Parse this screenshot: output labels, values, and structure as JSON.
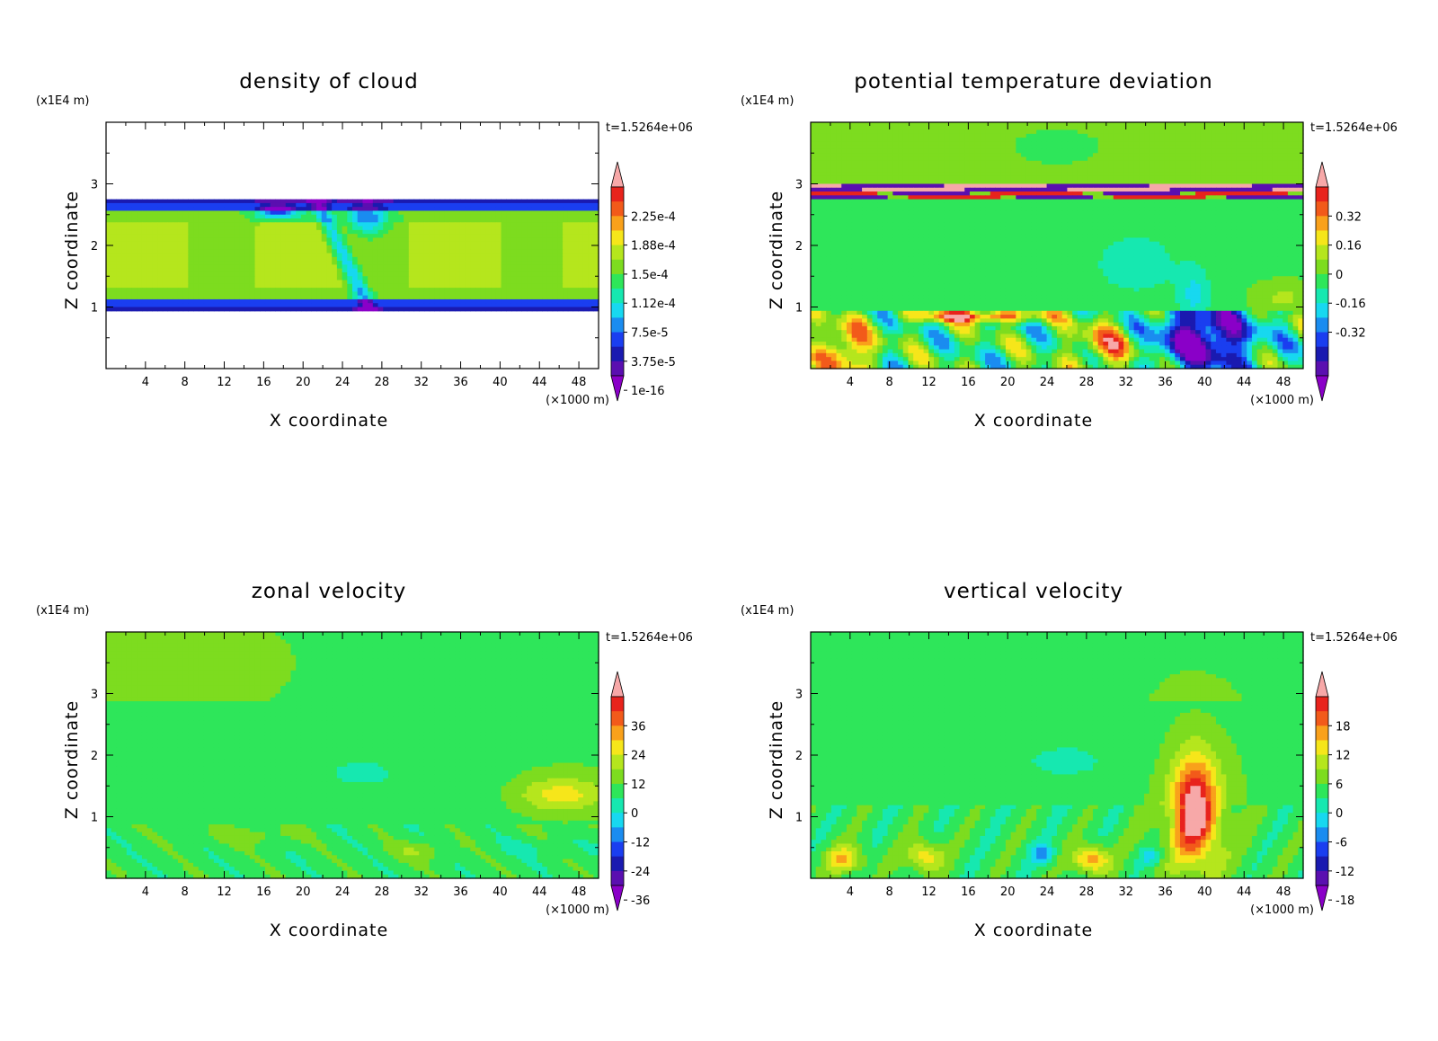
{
  "chart_data": [
    {
      "type": "heatmap",
      "title": "density of cloud",
      "xlabel": "X coordinate",
      "ylabel": "Z coordinate",
      "x_unit": "(×1000 m)",
      "y_unit": "(x1E4 m)",
      "time_label": "t=1.5264e+06",
      "xlim": [
        0,
        50
      ],
      "ylim": [
        0,
        4
      ],
      "x_ticks": [
        4,
        8,
        12,
        16,
        20,
        24,
        28,
        32,
        36,
        40,
        44,
        48
      ],
      "y_ticks": [
        1,
        2,
        3
      ],
      "colorbar": {
        "labels": [
          "2.25e-4",
          "1.88e-4",
          "1.5e-4",
          "1.12e-4",
          "7.5e-5",
          "3.75e-5",
          "1e-16"
        ],
        "colors": [
          "#f7a8a8",
          "#e8231c",
          "#f25a1a",
          "#f9a11b",
          "#f6e61a",
          "#b5e61d",
          "#7ddc1f",
          "#2ee65a",
          "#16e8b0",
          "#17d8f0",
          "#1a8cf0",
          "#1a3ef0",
          "#1a1ab0",
          "#5a0fb0",
          "#8a00c8"
        ]
      },
      "field": "cloud"
    },
    {
      "type": "heatmap",
      "title": "potential temperature deviation",
      "xlabel": "X coordinate",
      "ylabel": "Z coordinate",
      "x_unit": "(×1000 m)",
      "y_unit": "(x1E4 m)",
      "time_label": "t=1.5264e+06",
      "xlim": [
        0,
        50
      ],
      "ylim": [
        0,
        4
      ],
      "x_ticks": [
        4,
        8,
        12,
        16,
        20,
        24,
        28,
        32,
        36,
        40,
        44,
        48
      ],
      "y_ticks": [
        1,
        2,
        3
      ],
      "colorbar": {
        "labels": [
          "0.32",
          "0.16",
          "0",
          "-0.16",
          "-0.32"
        ],
        "colors": [
          "#f7a8a8",
          "#e8231c",
          "#f25a1a",
          "#f9a11b",
          "#f6e61a",
          "#b5e61d",
          "#7ddc1f",
          "#2ee65a",
          "#16e8b0",
          "#17d8f0",
          "#1a8cf0",
          "#1a3ef0",
          "#1a1ab0",
          "#5a0fb0",
          "#8a00c8"
        ]
      },
      "field": "theta"
    },
    {
      "type": "heatmap",
      "title": "zonal velocity",
      "xlabel": "X coordinate",
      "ylabel": "Z coordinate",
      "x_unit": "(×1000 m)",
      "y_unit": "(x1E4 m)",
      "time_label": "t=1.5264e+06",
      "xlim": [
        0,
        50
      ],
      "ylim": [
        0,
        4
      ],
      "x_ticks": [
        4,
        8,
        12,
        16,
        20,
        24,
        28,
        32,
        36,
        40,
        44,
        48
      ],
      "y_ticks": [
        1,
        2,
        3
      ],
      "colorbar": {
        "labels": [
          "36",
          "24",
          "12",
          "0",
          "-12",
          "-24",
          "-36"
        ],
        "colors": [
          "#f7a8a8",
          "#e8231c",
          "#f25a1a",
          "#f9a11b",
          "#f6e61a",
          "#b5e61d",
          "#7ddc1f",
          "#2ee65a",
          "#16e8b0",
          "#17d8f0",
          "#1a8cf0",
          "#1a3ef0",
          "#1a1ab0",
          "#5a0fb0",
          "#8a00c8"
        ]
      },
      "field": "u"
    },
    {
      "type": "heatmap",
      "title": "vertical velocity",
      "xlabel": "X coordinate",
      "ylabel": "Z coordinate",
      "x_unit": "(×1000 m)",
      "y_unit": "(x1E4 m)",
      "time_label": "t=1.5264e+06",
      "xlim": [
        0,
        50
      ],
      "ylim": [
        0,
        4
      ],
      "x_ticks": [
        4,
        8,
        12,
        16,
        20,
        24,
        28,
        32,
        36,
        40,
        44,
        48
      ],
      "y_ticks": [
        1,
        2,
        3
      ],
      "colorbar": {
        "labels": [
          "18",
          "12",
          "6",
          "0",
          "-6",
          "-12",
          "-18"
        ],
        "colors": [
          "#f7a8a8",
          "#e8231c",
          "#f25a1a",
          "#f9a11b",
          "#f6e61a",
          "#b5e61d",
          "#7ddc1f",
          "#2ee65a",
          "#16e8b0",
          "#17d8f0",
          "#1a8cf0",
          "#1a3ef0",
          "#1a1ab0",
          "#5a0fb0",
          "#8a00c8"
        ]
      },
      "field": "w"
    }
  ]
}
